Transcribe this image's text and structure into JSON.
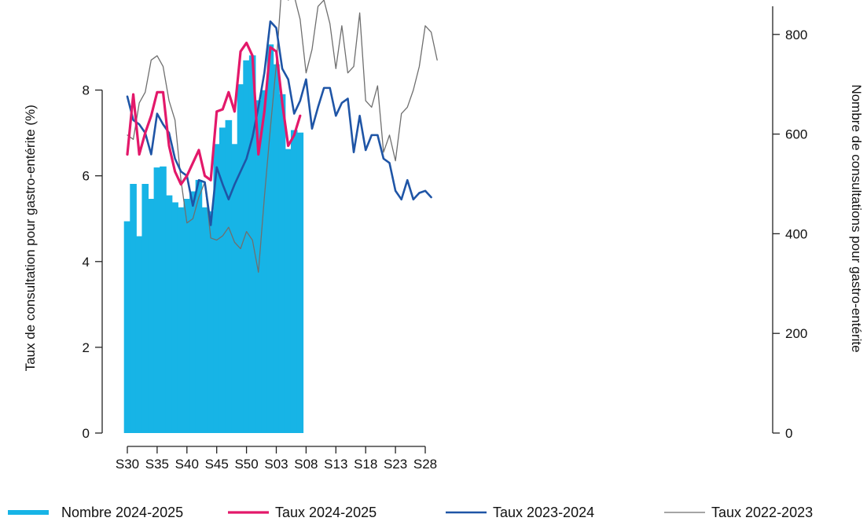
{
  "chart_data": {
    "type": "bar+line",
    "title": "",
    "x_tick_labels": [
      "S30",
      "S35",
      "S40",
      "S45",
      "S50",
      "S03",
      "S08",
      "S13",
      "S18",
      "S23",
      "S28"
    ],
    "x_tick_week_index": [
      0,
      5,
      10,
      15,
      20,
      25,
      30,
      35,
      40,
      45,
      50
    ],
    "y_left": {
      "label": "Taux de consultation pour gastro-entérite (%)",
      "lim": [
        0,
        9.5
      ],
      "ticks": [
        0,
        2,
        4,
        6,
        8
      ]
    },
    "y_right": {
      "label": "Nombre de consultations pour gastro-entérite",
      "lim": [
        0,
        860
      ],
      "ticks": [
        0,
        200,
        400,
        600,
        800
      ]
    },
    "colors": {
      "bars": "#17b4e6",
      "taux_2024_2025": "#e3186a",
      "taux_2023_2024": "#1f55a6",
      "taux_2022_2023": "#6f6f6f"
    },
    "bars": {
      "name": "Nombre 2024-2025",
      "axis": "right",
      "values": [
        425,
        500,
        395,
        500,
        470,
        533,
        535,
        477,
        463,
        453,
        470,
        485,
        508,
        453,
        445,
        580,
        613,
        628,
        580,
        700,
        748,
        758,
        668,
        688,
        780,
        740,
        680,
        570,
        608,
        603
      ]
    },
    "series": [
      {
        "name": "Taux 2024-2025",
        "axis": "left",
        "values": [
          6.5,
          7.9,
          6.5,
          7.0,
          7.4,
          7.95,
          7.95,
          6.7,
          6.1,
          5.8,
          6.0,
          6.3,
          6.6,
          6.0,
          5.9,
          7.5,
          7.55,
          7.95,
          7.5,
          8.9,
          9.1,
          8.8,
          6.5,
          7.5,
          9.0,
          8.9,
          7.7,
          6.7,
          6.95,
          7.4
        ]
      },
      {
        "name": "Taux 2023-2024",
        "axis": "left",
        "values": [
          7.85,
          7.3,
          7.2,
          7.0,
          6.5,
          7.45,
          7.2,
          7.0,
          6.4,
          6.1,
          6.0,
          5.3,
          5.9,
          5.85,
          4.85,
          6.2,
          5.8,
          5.45,
          5.8,
          6.1,
          6.4,
          6.9,
          7.6,
          8.4,
          9.6,
          9.45,
          8.5,
          8.25,
          7.45,
          7.75,
          8.25,
          7.1,
          7.6,
          8.05,
          8.05,
          7.4,
          7.7,
          7.8,
          6.55,
          7.4,
          6.6,
          6.95,
          6.95,
          6.4,
          6.3,
          5.65,
          5.45,
          5.9,
          5.45,
          5.6,
          5.65,
          5.5
        ]
      },
      {
        "name": "Taux 2022-2023",
        "axis": "left",
        "values": [
          6.95,
          6.85,
          7.7,
          7.95,
          8.7,
          8.8,
          8.55,
          7.75,
          7.3,
          5.9,
          4.9,
          5.0,
          5.5,
          5.85,
          4.55,
          4.5,
          4.6,
          4.8,
          4.45,
          4.3,
          4.7,
          4.5,
          3.75,
          5.5,
          7.1,
          8.6,
          10.6,
          10.1,
          10.2,
          9.65,
          8.4,
          8.95,
          9.95,
          10.1,
          9.55,
          8.5,
          9.5,
          8.4,
          8.55,
          9.8,
          7.75,
          7.6,
          8.1,
          6.55,
          6.95,
          6.35,
          7.45,
          7.6,
          8.0,
          8.55,
          9.5,
          9.35,
          8.7
        ]
      }
    ],
    "legend": {
      "position": "bottom",
      "entries": [
        {
          "label": "Nombre 2024-2025",
          "kind": "bar"
        },
        {
          "label": "Taux 2024-2025",
          "kind": "line"
        },
        {
          "label": "Taux 2023-2024",
          "kind": "line"
        },
        {
          "label": "Taux 2022-2023",
          "kind": "line"
        }
      ]
    }
  }
}
